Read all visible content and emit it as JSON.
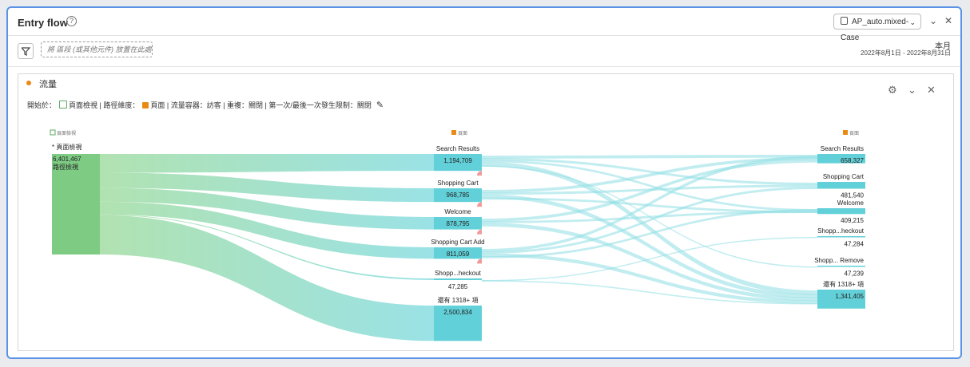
{
  "header": {
    "title": "Entry flow",
    "help_glyph": "?",
    "segment_label": "AP_auto.mixed-Case",
    "collapse_glyph": "⌄",
    "close_glyph": "✕"
  },
  "filter_bar": {
    "dropzone_text": "將 區段 (或其他元件) 放置在此處",
    "range_label": "本月",
    "range_dates": "2022年8月1日 - 2022年8月31日"
  },
  "card": {
    "title": "流量",
    "settings_prefix": "開始於：",
    "settings_start": "頁面檢視 | 路徑維度：",
    "settings_rest": "頁面 | 流量容器：訪客 | 重複：關閉 | 第一次/最後一次發生限制：關閉",
    "gear_glyph": "⚙",
    "chevron_glyph": "⌄",
    "close_glyph": "✕",
    "pencil_glyph": "✎"
  },
  "flow": {
    "columns": [
      "頁面檢視",
      "頁面",
      "頁面"
    ],
    "colors": {
      "entry": "#7ecb84",
      "node": "#62d0d8",
      "link_to": "#8fdfe3",
      "link_from": "#a8dfa8",
      "exit": "#f29999"
    },
    "entry": {
      "label": "* 頁面檢視",
      "value": "6,401,467",
      "sublabel": "路徑檢視"
    },
    "col2": [
      {
        "label": "Search Results",
        "value": "1,194,709"
      },
      {
        "label": "Shopping Cart",
        "value": "968,785"
      },
      {
        "label": "Welcome",
        "value": "878,795"
      },
      {
        "label": "Shopping Cart Add",
        "value": "811,059"
      },
      {
        "label": "Shopp...heckout",
        "value": "47,285"
      },
      {
        "label": "還有 1318+ 項",
        "value": "2,500,834"
      }
    ],
    "col3": [
      {
        "label": "Search Results",
        "value": "658,327"
      },
      {
        "label": "Shopping Cart",
        "value": "481,540"
      },
      {
        "label": "Welcome",
        "value": "409,215"
      },
      {
        "label": "Shopp...heckout",
        "value": "47,284"
      },
      {
        "label": "Shopp... Remove",
        "value": "47,239"
      },
      {
        "label": "還有 1318+ 項",
        "value": "1,341,405"
      }
    ]
  }
}
